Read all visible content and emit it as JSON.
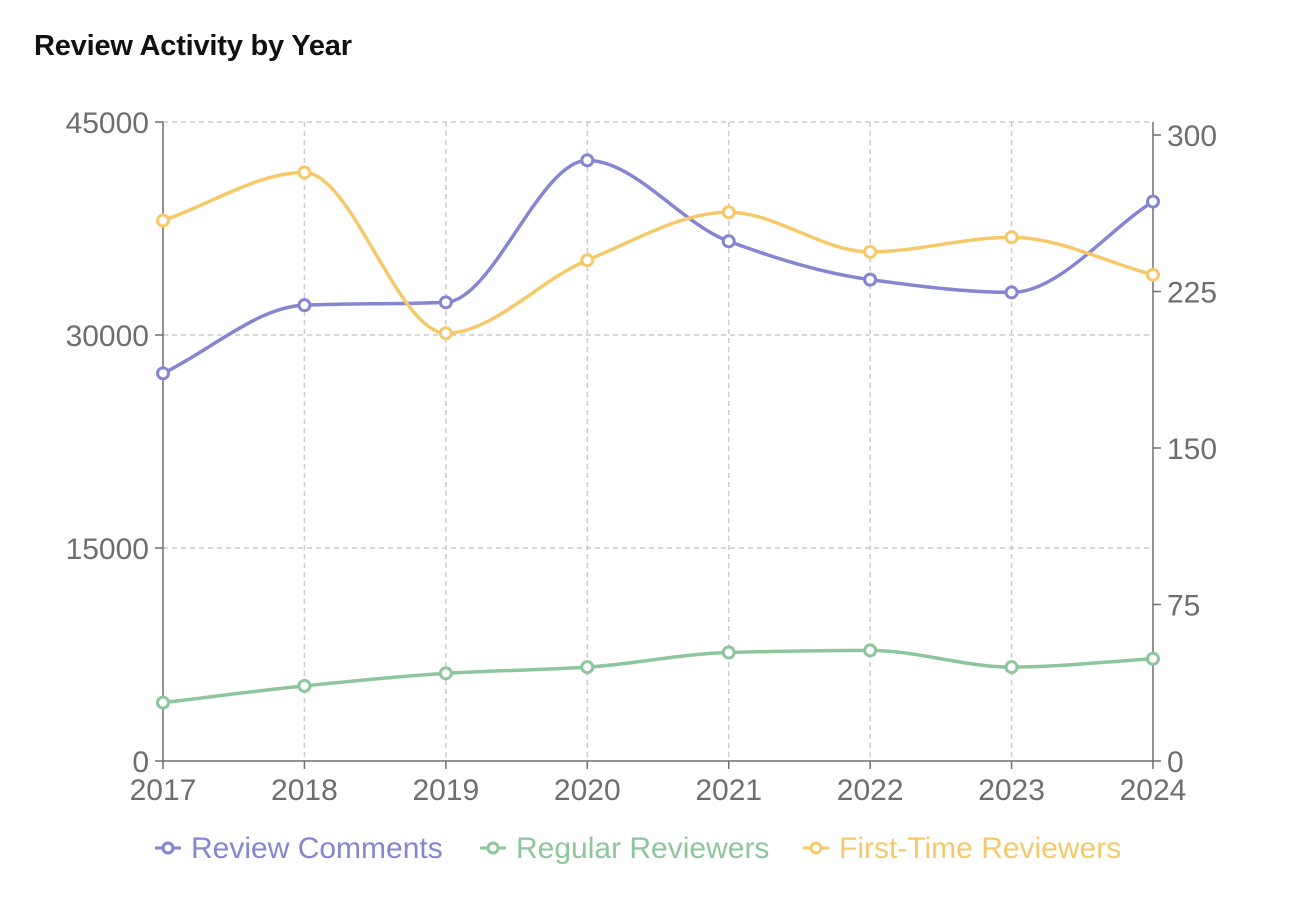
{
  "title": "Review Activity by Year",
  "chart_data": {
    "type": "line",
    "x": [
      "2017",
      "2018",
      "2019",
      "2020",
      "2021",
      "2022",
      "2023",
      "2024"
    ],
    "series": [
      {
        "name": "Review Comments",
        "axis": "left",
        "color": "#8585d1",
        "values": [
          27300,
          32100,
          32300,
          42300,
          36600,
          33900,
          33000,
          39400
        ]
      },
      {
        "name": "Regular Reviewers",
        "axis": "right",
        "color": "#8dc69b",
        "values": [
          28,
          36,
          42,
          45,
          52,
          53,
          45,
          49
        ]
      },
      {
        "name": "First-Time Reviewers",
        "axis": "right",
        "color": "#f5c96a",
        "values": [
          259,
          282,
          205,
          240,
          263,
          244,
          251,
          233
        ]
      }
    ],
    "y_left": {
      "ticks": [
        "0",
        "15000",
        "30000",
        "45000"
      ],
      "range": [
        0,
        45000
      ]
    },
    "y_right": {
      "ticks": [
        "0",
        "75",
        "150",
        "225",
        "300"
      ],
      "range": [
        0,
        300
      ]
    },
    "grid": true,
    "legend": "bottom"
  }
}
